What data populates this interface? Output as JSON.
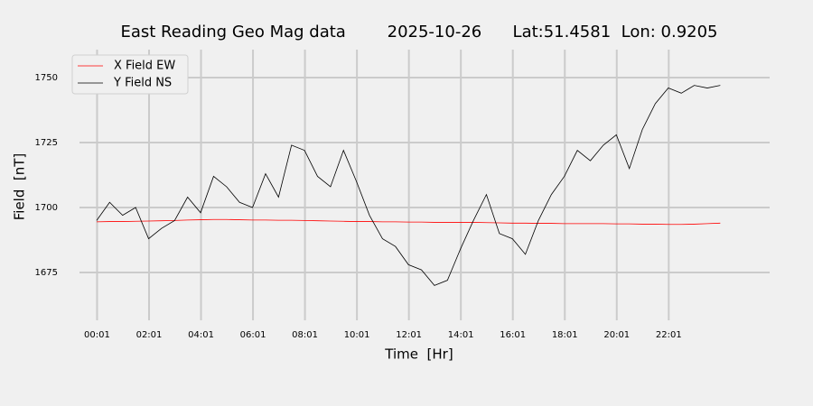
{
  "chart_data": {
    "type": "line",
    "title": "East Reading Geo Mag data        2025-10-26      Lat:51.4581  Lon: 0.9205",
    "xlabel": "Time  [Hr]",
    "ylabel": "Field  [nT]",
    "x": [
      0,
      0.5,
      1,
      1.5,
      2,
      2.5,
      3,
      3.5,
      4,
      4.5,
      5,
      5.5,
      6,
      6.5,
      7,
      7.5,
      8,
      8.5,
      9,
      9.5,
      10,
      10.5,
      11,
      11.5,
      12,
      12.5,
      13,
      13.5,
      14,
      14.5,
      15,
      15.5,
      16,
      16.5,
      17,
      17.5,
      18,
      18.5,
      19,
      19.5,
      20,
      20.5,
      21,
      21.5,
      22,
      22.5,
      23,
      23.5,
      24
    ],
    "series": [
      {
        "name": "X Field EW",
        "color": "#ff0000",
        "values": [
          1694.5,
          1694.6,
          1694.6,
          1694.7,
          1694.8,
          1694.9,
          1695,
          1695.2,
          1695.3,
          1695.4,
          1695.4,
          1695.3,
          1695.2,
          1695.2,
          1695.1,
          1695.1,
          1695,
          1694.9,
          1694.8,
          1694.7,
          1694.6,
          1694.6,
          1694.5,
          1694.5,
          1694.4,
          1694.4,
          1694.3,
          1694.3,
          1694.3,
          1694.3,
          1694.2,
          1694.1,
          1694,
          1694,
          1693.9,
          1693.9,
          1693.8,
          1693.8,
          1693.8,
          1693.8,
          1693.7,
          1693.7,
          1693.6,
          1693.6,
          1693.5,
          1693.5,
          1693.6,
          1693.8,
          1694
        ]
      },
      {
        "name": "Y Field NS",
        "color": "#000000",
        "values": [
          1695,
          1702,
          1697,
          1700,
          1688,
          1692,
          1695,
          1704,
          1698,
          1712,
          1708,
          1702,
          1700,
          1713,
          1704,
          1724,
          1722,
          1712,
          1708,
          1722,
          1710,
          1697,
          1688,
          1685,
          1678,
          1676,
          1670,
          1672,
          1684,
          1695,
          1705,
          1690,
          1688,
          1682,
          1695,
          1705,
          1712,
          1722,
          1718,
          1724,
          1728,
          1715,
          1730,
          1740,
          1746,
          1744,
          1747,
          1746,
          1747
        ]
      }
    ],
    "xlim": [
      -0.66,
      25.9
    ],
    "xticks": [
      {
        "value": 0.0167,
        "label": "00:01"
      },
      {
        "value": 2.0167,
        "label": "02:01"
      },
      {
        "value": 4.0167,
        "label": "04:01"
      },
      {
        "value": 6.0167,
        "label": "06:01"
      },
      {
        "value": 8.0167,
        "label": "08:01"
      },
      {
        "value": 10.0167,
        "label": "10:01"
      },
      {
        "value": 12.0167,
        "label": "12:01"
      },
      {
        "value": 14.0167,
        "label": "14:01"
      },
      {
        "value": 16.0167,
        "label": "16:01"
      },
      {
        "value": 18.0167,
        "label": "18:01"
      },
      {
        "value": 20.0167,
        "label": "20:01"
      },
      {
        "value": 22.0167,
        "label": "22:01"
      }
    ],
    "ylim": [
      1656.6,
      1757.3
    ],
    "yticks": [
      1675,
      1700,
      1725,
      1750
    ],
    "grid": true,
    "legend": "upper left"
  }
}
